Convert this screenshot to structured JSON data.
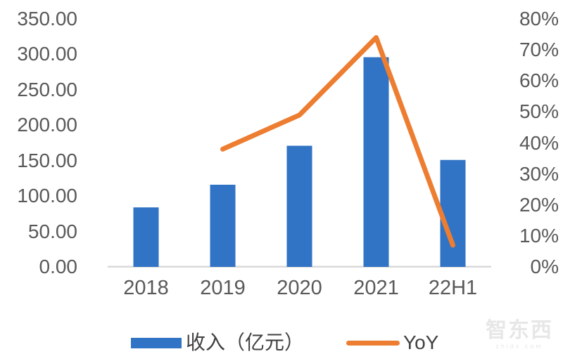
{
  "chart_data": {
    "type": "combo",
    "title": "",
    "categories": [
      "2018",
      "2019",
      "2020",
      "2021",
      "22H1"
    ],
    "series": [
      {
        "name": "收入（亿元）",
        "type": "bar",
        "axis": "left",
        "color": "#3173C4",
        "values": [
          84,
          116,
          171,
          296,
          151
        ]
      },
      {
        "name": "YoY",
        "type": "line",
        "axis": "right",
        "color": "#ED7D31",
        "values": [
          null,
          38,
          49,
          74,
          7
        ]
      }
    ],
    "left_axis": {
      "min": 0,
      "max": 350,
      "step": 50,
      "tick_labels": [
        "350.00",
        "300.00",
        "250.00",
        "200.00",
        "150.00",
        "100.00",
        "50.00",
        "0.00"
      ]
    },
    "right_axis": {
      "min": 0,
      "max": 80,
      "step": 10,
      "tick_labels": [
        "80%",
        "70%",
        "60%",
        "50%",
        "40%",
        "30%",
        "20%",
        "10%",
        "0%"
      ]
    },
    "grid": false,
    "legend_position": "bottom"
  },
  "legend": {
    "bar_label": "收入（亿元）",
    "line_label": "YoY"
  },
  "watermark": {
    "logo": "智东西",
    "domain": "zhidx.com"
  },
  "colors": {
    "bar": "#3173C4",
    "line": "#ED7D31",
    "axis_line": "#D9D9D9",
    "axis_text": "#595959"
  }
}
